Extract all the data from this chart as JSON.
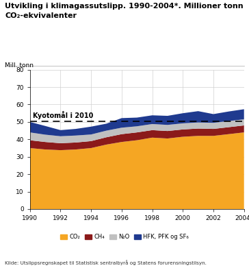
{
  "title_line1": "Utvikling i klimagassutslipp. 1990-2004*. Millioner tonn",
  "title_line2": "CO₂-ekvivalenter",
  "ylabel": "Mill. tonn",
  "years": [
    1990,
    1991,
    1992,
    1993,
    1994,
    1995,
    1996,
    1997,
    1998,
    1999,
    2000,
    2001,
    2002,
    2003,
    2004
  ],
  "CO2": [
    35.0,
    34.2,
    33.8,
    34.2,
    35.0,
    37.0,
    38.5,
    39.5,
    41.0,
    40.5,
    41.5,
    42.0,
    42.0,
    43.0,
    44.0
  ],
  "CH4": [
    4.5,
    4.3,
    4.0,
    4.0,
    4.0,
    4.2,
    4.5,
    4.5,
    4.3,
    4.3,
    4.2,
    4.2,
    4.0,
    4.0,
    4.0
  ],
  "N2O": [
    4.5,
    4.2,
    4.0,
    4.0,
    3.8,
    3.8,
    3.7,
    3.5,
    3.5,
    3.5,
    3.5,
    3.5,
    3.5,
    3.5,
    3.5
  ],
  "HFK": [
    6.0,
    5.0,
    3.5,
    3.8,
    4.5,
    4.0,
    5.5,
    5.0,
    5.0,
    5.2,
    5.8,
    6.5,
    5.0,
    5.5,
    5.8
  ],
  "CO2_color": "#F5A623",
  "CH4_color": "#8B1A1A",
  "N2O_color": "#C0C0C0",
  "HFK_color": "#1F3A8F",
  "kyoto_level": 50.5,
  "kyoto_label": "Kyotomål i 2010",
  "ylim": [
    0,
    80
  ],
  "yticks": [
    0,
    10,
    20,
    30,
    40,
    50,
    60,
    70,
    80
  ],
  "xtick_labels": [
    "1990",
    "1992",
    "1994",
    "1996",
    "1998",
    "2000",
    "2002",
    "2004*"
  ],
  "xtick_positions": [
    1990,
    1992,
    1994,
    1996,
    1998,
    2000,
    2002,
    2004
  ],
  "legend_labels": [
    "CO₂",
    "CH₄",
    "N₂O",
    "HFK, PFK og SF₆"
  ],
  "source_text": "Kilde: Utslippsregnskapet til Statistisk sentralbyrå og Statens forurensningstilsyn.",
  "bg_color": "#ffffff",
  "grid_color": "#d0d0d0"
}
